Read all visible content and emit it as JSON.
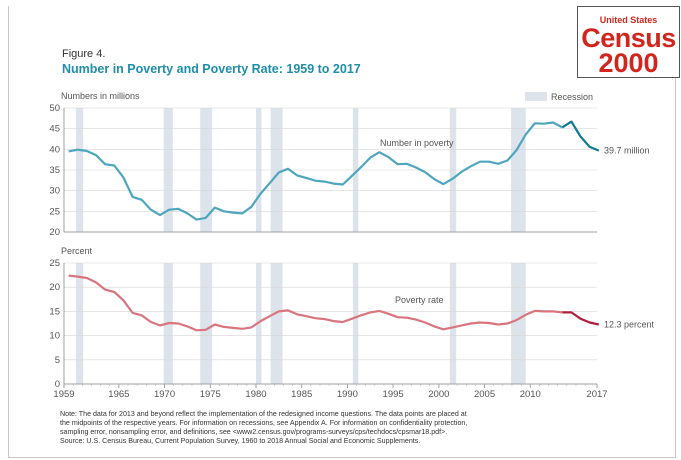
{
  "figure_label": "Figure 4.",
  "figure_title": "Number in Poverty and Poverty Rate: 1959 to 2017",
  "logo": {
    "line1": "United States",
    "line2": "Census",
    "line3": "2000"
  },
  "legend": {
    "recession": "Recession"
  },
  "colors": {
    "recession": "#dde3ea",
    "number_line": "#4ea6be",
    "number_line_dark": "#0f7a93",
    "rate_line": "#d9757e",
    "rate_line_dark": "#b0203e",
    "axis_text": "#555555"
  },
  "notes": {
    "line1": "Note: The data for 2013 and beyond reflect the implementation of the redesigned income questions. The data points are placed at",
    "line2": "the midpoints of the respective years. For information on recessions, see Appendix A. For information on confidentiality protection,",
    "line3": "sampling error, nonsampling error, and definitions, see <www2.census.gov/programs-surveys/cps/techdocs/cpsmar18.pdf>.",
    "source": "Source: U.S. Census Bureau, Current Population Survey, 1960 to 2018 Annual Social and Economic Supplements."
  },
  "chart_data": [
    {
      "type": "line",
      "ylabel": "Numbers in millions",
      "ylim": [
        20,
        50
      ],
      "yticks": [
        20,
        25,
        30,
        35,
        40,
        45,
        50
      ],
      "xlim": [
        1959,
        2017
      ],
      "series_label": "Number in poverty",
      "end_label": "39.7 million",
      "x": [
        1959,
        1960,
        1961,
        1962,
        1963,
        1964,
        1965,
        1966,
        1967,
        1968,
        1969,
        1970,
        1971,
        1972,
        1973,
        1974,
        1975,
        1976,
        1977,
        1978,
        1979,
        1980,
        1981,
        1982,
        1983,
        1984,
        1985,
        1986,
        1987,
        1988,
        1989,
        1990,
        1991,
        1992,
        1993,
        1994,
        1995,
        1996,
        1997,
        1998,
        1999,
        2000,
        2001,
        2002,
        2003,
        2004,
        2005,
        2006,
        2007,
        2008,
        2009,
        2010,
        2011,
        2012,
        2013,
        2014,
        2015,
        2016,
        2017
      ],
      "values": [
        39.5,
        39.9,
        39.6,
        38.6,
        36.4,
        36.1,
        33.2,
        28.5,
        27.8,
        25.4,
        24.1,
        25.4,
        25.6,
        24.5,
        23.0,
        23.4,
        25.9,
        25.0,
        24.7,
        24.5,
        26.1,
        29.3,
        31.8,
        34.4,
        35.3,
        33.7,
        33.1,
        32.4,
        32.2,
        31.7,
        31.5,
        33.6,
        35.7,
        38.0,
        39.3,
        38.1,
        36.4,
        36.5,
        35.6,
        34.5,
        32.8,
        31.6,
        32.9,
        34.6,
        35.9,
        37.0,
        37.0,
        36.5,
        37.3,
        39.8,
        43.6,
        46.3,
        46.2,
        46.5,
        45.3,
        46.7,
        43.1,
        40.6,
        39.7
      ],
      "redesign_from": 2013
    },
    {
      "type": "line",
      "ylabel": "Percent",
      "ylim": [
        0,
        25
      ],
      "yticks": [
        0,
        5,
        10,
        15,
        20,
        25
      ],
      "xlim": [
        1959,
        2017
      ],
      "xticks": [
        "1959",
        "1965",
        "1970",
        "1975",
        "1980",
        "1985",
        "1990",
        "1995",
        "2000",
        "2005",
        "2010",
        "2017"
      ],
      "series_label": "Poverty rate",
      "end_label": "12.3 percent",
      "x": [
        1959,
        1960,
        1961,
        1962,
        1963,
        1964,
        1965,
        1966,
        1967,
        1968,
        1969,
        1970,
        1971,
        1972,
        1973,
        1974,
        1975,
        1976,
        1977,
        1978,
        1979,
        1980,
        1981,
        1982,
        1983,
        1984,
        1985,
        1986,
        1987,
        1988,
        1989,
        1990,
        1991,
        1992,
        1993,
        1994,
        1995,
        1996,
        1997,
        1998,
        1999,
        2000,
        2001,
        2002,
        2003,
        2004,
        2005,
        2006,
        2007,
        2008,
        2009,
        2010,
        2011,
        2012,
        2013,
        2014,
        2015,
        2016,
        2017
      ],
      "values": [
        22.4,
        22.2,
        21.9,
        21.0,
        19.5,
        19.0,
        17.3,
        14.7,
        14.2,
        12.8,
        12.1,
        12.6,
        12.5,
        11.9,
        11.1,
        11.2,
        12.3,
        11.8,
        11.6,
        11.4,
        11.7,
        13.0,
        14.0,
        15.0,
        15.2,
        14.4,
        14.0,
        13.6,
        13.4,
        13.0,
        12.8,
        13.5,
        14.2,
        14.8,
        15.1,
        14.5,
        13.8,
        13.7,
        13.3,
        12.7,
        11.9,
        11.3,
        11.7,
        12.1,
        12.5,
        12.7,
        12.6,
        12.3,
        12.5,
        13.2,
        14.3,
        15.1,
        15.0,
        15.0,
        14.8,
        14.8,
        13.5,
        12.7,
        12.3
      ],
      "redesign_from": 2013
    }
  ],
  "recessions": [
    [
      1960.3,
      1961.1
    ],
    [
      1969.9,
      1970.9
    ],
    [
      1973.9,
      1975.2
    ],
    [
      1980.0,
      1980.6
    ],
    [
      1981.6,
      1982.9
    ],
    [
      1990.6,
      1991.2
    ],
    [
      2001.2,
      2001.9
    ],
    [
      2007.9,
      2009.5
    ]
  ]
}
